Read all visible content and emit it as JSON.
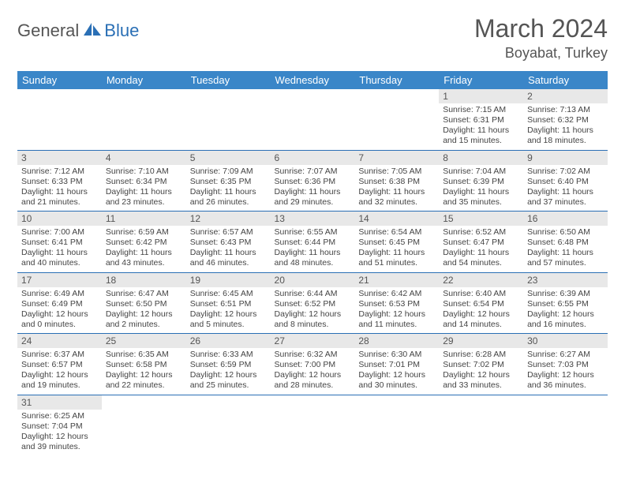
{
  "logo": {
    "part1": "General",
    "part2": "Blue"
  },
  "title": "March 2024",
  "location": "Boyabat, Turkey",
  "colors": {
    "header_bg": "#3a86c8",
    "daynum_bg": "#e8e8e8",
    "border": "#2a6fb5",
    "logo_blue": "#2a6fb5"
  },
  "weekdays": [
    "Sunday",
    "Monday",
    "Tuesday",
    "Wednesday",
    "Thursday",
    "Friday",
    "Saturday"
  ],
  "weeks": [
    [
      null,
      null,
      null,
      null,
      null,
      {
        "n": "1",
        "sr": "Sunrise: 7:15 AM",
        "ss": "Sunset: 6:31 PM",
        "dl": "Daylight: 11 hours and 15 minutes."
      },
      {
        "n": "2",
        "sr": "Sunrise: 7:13 AM",
        "ss": "Sunset: 6:32 PM",
        "dl": "Daylight: 11 hours and 18 minutes."
      }
    ],
    [
      {
        "n": "3",
        "sr": "Sunrise: 7:12 AM",
        "ss": "Sunset: 6:33 PM",
        "dl": "Daylight: 11 hours and 21 minutes."
      },
      {
        "n": "4",
        "sr": "Sunrise: 7:10 AM",
        "ss": "Sunset: 6:34 PM",
        "dl": "Daylight: 11 hours and 23 minutes."
      },
      {
        "n": "5",
        "sr": "Sunrise: 7:09 AM",
        "ss": "Sunset: 6:35 PM",
        "dl": "Daylight: 11 hours and 26 minutes."
      },
      {
        "n": "6",
        "sr": "Sunrise: 7:07 AM",
        "ss": "Sunset: 6:36 PM",
        "dl": "Daylight: 11 hours and 29 minutes."
      },
      {
        "n": "7",
        "sr": "Sunrise: 7:05 AM",
        "ss": "Sunset: 6:38 PM",
        "dl": "Daylight: 11 hours and 32 minutes."
      },
      {
        "n": "8",
        "sr": "Sunrise: 7:04 AM",
        "ss": "Sunset: 6:39 PM",
        "dl": "Daylight: 11 hours and 35 minutes."
      },
      {
        "n": "9",
        "sr": "Sunrise: 7:02 AM",
        "ss": "Sunset: 6:40 PM",
        "dl": "Daylight: 11 hours and 37 minutes."
      }
    ],
    [
      {
        "n": "10",
        "sr": "Sunrise: 7:00 AM",
        "ss": "Sunset: 6:41 PM",
        "dl": "Daylight: 11 hours and 40 minutes."
      },
      {
        "n": "11",
        "sr": "Sunrise: 6:59 AM",
        "ss": "Sunset: 6:42 PM",
        "dl": "Daylight: 11 hours and 43 minutes."
      },
      {
        "n": "12",
        "sr": "Sunrise: 6:57 AM",
        "ss": "Sunset: 6:43 PM",
        "dl": "Daylight: 11 hours and 46 minutes."
      },
      {
        "n": "13",
        "sr": "Sunrise: 6:55 AM",
        "ss": "Sunset: 6:44 PM",
        "dl": "Daylight: 11 hours and 48 minutes."
      },
      {
        "n": "14",
        "sr": "Sunrise: 6:54 AM",
        "ss": "Sunset: 6:45 PM",
        "dl": "Daylight: 11 hours and 51 minutes."
      },
      {
        "n": "15",
        "sr": "Sunrise: 6:52 AM",
        "ss": "Sunset: 6:47 PM",
        "dl": "Daylight: 11 hours and 54 minutes."
      },
      {
        "n": "16",
        "sr": "Sunrise: 6:50 AM",
        "ss": "Sunset: 6:48 PM",
        "dl": "Daylight: 11 hours and 57 minutes."
      }
    ],
    [
      {
        "n": "17",
        "sr": "Sunrise: 6:49 AM",
        "ss": "Sunset: 6:49 PM",
        "dl": "Daylight: 12 hours and 0 minutes."
      },
      {
        "n": "18",
        "sr": "Sunrise: 6:47 AM",
        "ss": "Sunset: 6:50 PM",
        "dl": "Daylight: 12 hours and 2 minutes."
      },
      {
        "n": "19",
        "sr": "Sunrise: 6:45 AM",
        "ss": "Sunset: 6:51 PM",
        "dl": "Daylight: 12 hours and 5 minutes."
      },
      {
        "n": "20",
        "sr": "Sunrise: 6:44 AM",
        "ss": "Sunset: 6:52 PM",
        "dl": "Daylight: 12 hours and 8 minutes."
      },
      {
        "n": "21",
        "sr": "Sunrise: 6:42 AM",
        "ss": "Sunset: 6:53 PM",
        "dl": "Daylight: 12 hours and 11 minutes."
      },
      {
        "n": "22",
        "sr": "Sunrise: 6:40 AM",
        "ss": "Sunset: 6:54 PM",
        "dl": "Daylight: 12 hours and 14 minutes."
      },
      {
        "n": "23",
        "sr": "Sunrise: 6:39 AM",
        "ss": "Sunset: 6:55 PM",
        "dl": "Daylight: 12 hours and 16 minutes."
      }
    ],
    [
      {
        "n": "24",
        "sr": "Sunrise: 6:37 AM",
        "ss": "Sunset: 6:57 PM",
        "dl": "Daylight: 12 hours and 19 minutes."
      },
      {
        "n": "25",
        "sr": "Sunrise: 6:35 AM",
        "ss": "Sunset: 6:58 PM",
        "dl": "Daylight: 12 hours and 22 minutes."
      },
      {
        "n": "26",
        "sr": "Sunrise: 6:33 AM",
        "ss": "Sunset: 6:59 PM",
        "dl": "Daylight: 12 hours and 25 minutes."
      },
      {
        "n": "27",
        "sr": "Sunrise: 6:32 AM",
        "ss": "Sunset: 7:00 PM",
        "dl": "Daylight: 12 hours and 28 minutes."
      },
      {
        "n": "28",
        "sr": "Sunrise: 6:30 AM",
        "ss": "Sunset: 7:01 PM",
        "dl": "Daylight: 12 hours and 30 minutes."
      },
      {
        "n": "29",
        "sr": "Sunrise: 6:28 AM",
        "ss": "Sunset: 7:02 PM",
        "dl": "Daylight: 12 hours and 33 minutes."
      },
      {
        "n": "30",
        "sr": "Sunrise: 6:27 AM",
        "ss": "Sunset: 7:03 PM",
        "dl": "Daylight: 12 hours and 36 minutes."
      }
    ],
    [
      {
        "n": "31",
        "sr": "Sunrise: 6:25 AM",
        "ss": "Sunset: 7:04 PM",
        "dl": "Daylight: 12 hours and 39 minutes."
      },
      null,
      null,
      null,
      null,
      null,
      null
    ]
  ]
}
